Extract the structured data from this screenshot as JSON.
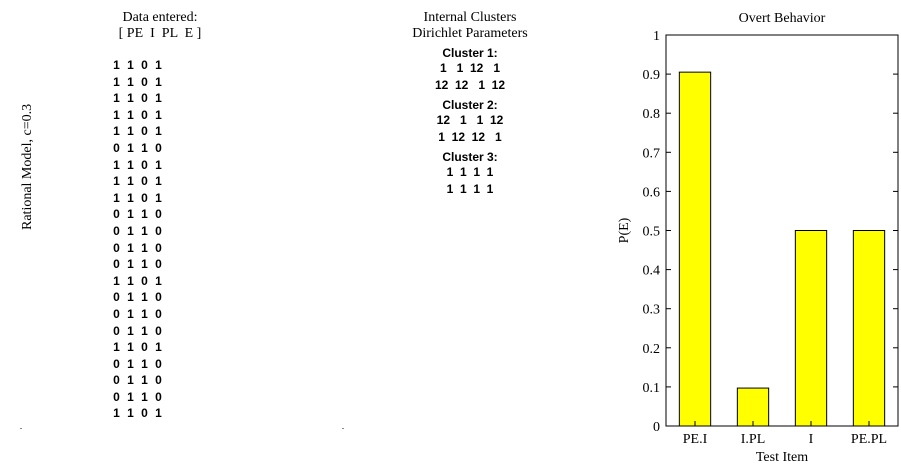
{
  "side_label": "Rational Model, c=0.3",
  "data_panel": {
    "title": "Data entered:",
    "header": "[ PE  I  PL  E ]",
    "rows": [
      [
        "1",
        "1",
        "0",
        "1"
      ],
      [
        "1",
        "1",
        "0",
        "1"
      ],
      [
        "1",
        "1",
        "0",
        "1"
      ],
      [
        "1",
        "1",
        "0",
        "1"
      ],
      [
        "1",
        "1",
        "0",
        "1"
      ],
      [
        "0",
        "1",
        "1",
        "0"
      ],
      [
        "1",
        "1",
        "0",
        "1"
      ],
      [
        "1",
        "1",
        "0",
        "1"
      ],
      [
        "1",
        "1",
        "0",
        "1"
      ],
      [
        "0",
        "1",
        "1",
        "0"
      ],
      [
        "0",
        "1",
        "1",
        "0"
      ],
      [
        "0",
        "1",
        "1",
        "0"
      ],
      [
        "0",
        "1",
        "1",
        "0"
      ],
      [
        "1",
        "1",
        "0",
        "1"
      ],
      [
        "0",
        "1",
        "1",
        "0"
      ],
      [
        "0",
        "1",
        "1",
        "0"
      ],
      [
        "0",
        "1",
        "1",
        "0"
      ],
      [
        "1",
        "1",
        "0",
        "1"
      ],
      [
        "0",
        "1",
        "1",
        "0"
      ],
      [
        "0",
        "1",
        "1",
        "0"
      ],
      [
        "0",
        "1",
        "1",
        "0"
      ],
      [
        "1",
        "1",
        "0",
        "1"
      ]
    ]
  },
  "clusters_panel": {
    "title": "Internal Clusters",
    "subtitle": "Dirichlet Parameters",
    "clusters": [
      {
        "label": "Cluster 1:",
        "rows": [
          "1   1  12   1",
          "12  12   1  12"
        ]
      },
      {
        "label": "Cluster 2:",
        "rows": [
          "12   1   1  12",
          "1  12  12   1"
        ]
      },
      {
        "label": "Cluster 3:",
        "rows": [
          "1  1  1  1",
          "1  1  1  1"
        ]
      }
    ]
  },
  "chart_data": {
    "type": "bar",
    "title": "Overt Behavior",
    "xlabel": "Test Item",
    "ylabel": "P(E)",
    "categories": [
      "PE.I",
      "I.PL",
      "I",
      "PE.PL"
    ],
    "values": [
      0.905,
      0.097,
      0.5,
      0.5
    ],
    "ylim": [
      0,
      1
    ],
    "yticks": [
      "0",
      "0.1",
      "0.2",
      "0.3",
      "0.4",
      "0.5",
      "0.6",
      "0.7",
      "0.8",
      "0.9",
      "1"
    ],
    "bar_color": "#ffff00",
    "grid": false
  }
}
